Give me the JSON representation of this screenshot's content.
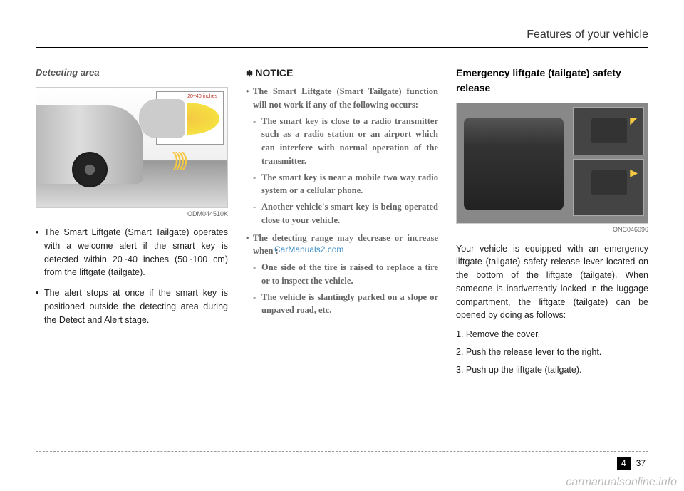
{
  "header": {
    "title": "Features of your vehicle"
  },
  "col1": {
    "subheading": "Detecting area",
    "figure": {
      "code": "ODM044510K",
      "inset_label": "20~40 inches"
    },
    "bullets": [
      "The Smart Liftgate (Smart Tailgate) operates with a welcome alert if the smart key is detected within 20~40 inches (50~100 cm) from the liftgate (tailgate).",
      "The alert stops at once if the smart key is positioned outside the detecting area during the Detect and Alert stage."
    ]
  },
  "col2": {
    "notice_label": "NOTICE",
    "items": [
      {
        "text": "The Smart Liftgate (Smart Tailgate) function will not work if any of the following occurs:",
        "subs": [
          "The smart key is close to a radio transmitter such as a radio station or an airport which can interfere with normal operation of the transmitter.",
          "The smart key is near a mobile two way radio system or a cellular phone.",
          "Another vehicle's smart key is being operated close to your vehicle."
        ]
      },
      {
        "text": "The detecting range may decrease or increase when :",
        "subs": [
          "One side of the tire is raised to replace a tire or to inspect the vehicle.",
          "The vehicle is slantingly parked on a slope or unpaved road, etc."
        ]
      }
    ]
  },
  "col3": {
    "heading": "Emergency liftgate (tailgate) safety release",
    "figure": {
      "code": "ONC046096"
    },
    "para": "Your vehicle is equipped with an emergency liftgate (tailgate) safety release lever located on the bottom of the liftgate (tailgate). When someone is inadvertently locked in the luggage compartment, the liftgate (tailgate) can be opened by doing as follows:",
    "steps": [
      "1. Remove the cover.",
      "2. Push the release lever to the right.",
      "3. Push up the liftgate (tailgate)."
    ]
  },
  "watermark_link": "CarManuals2.com",
  "footer": {
    "chapter": "4",
    "page": "37"
  },
  "bottom_watermark": "carmanualsonline.info"
}
